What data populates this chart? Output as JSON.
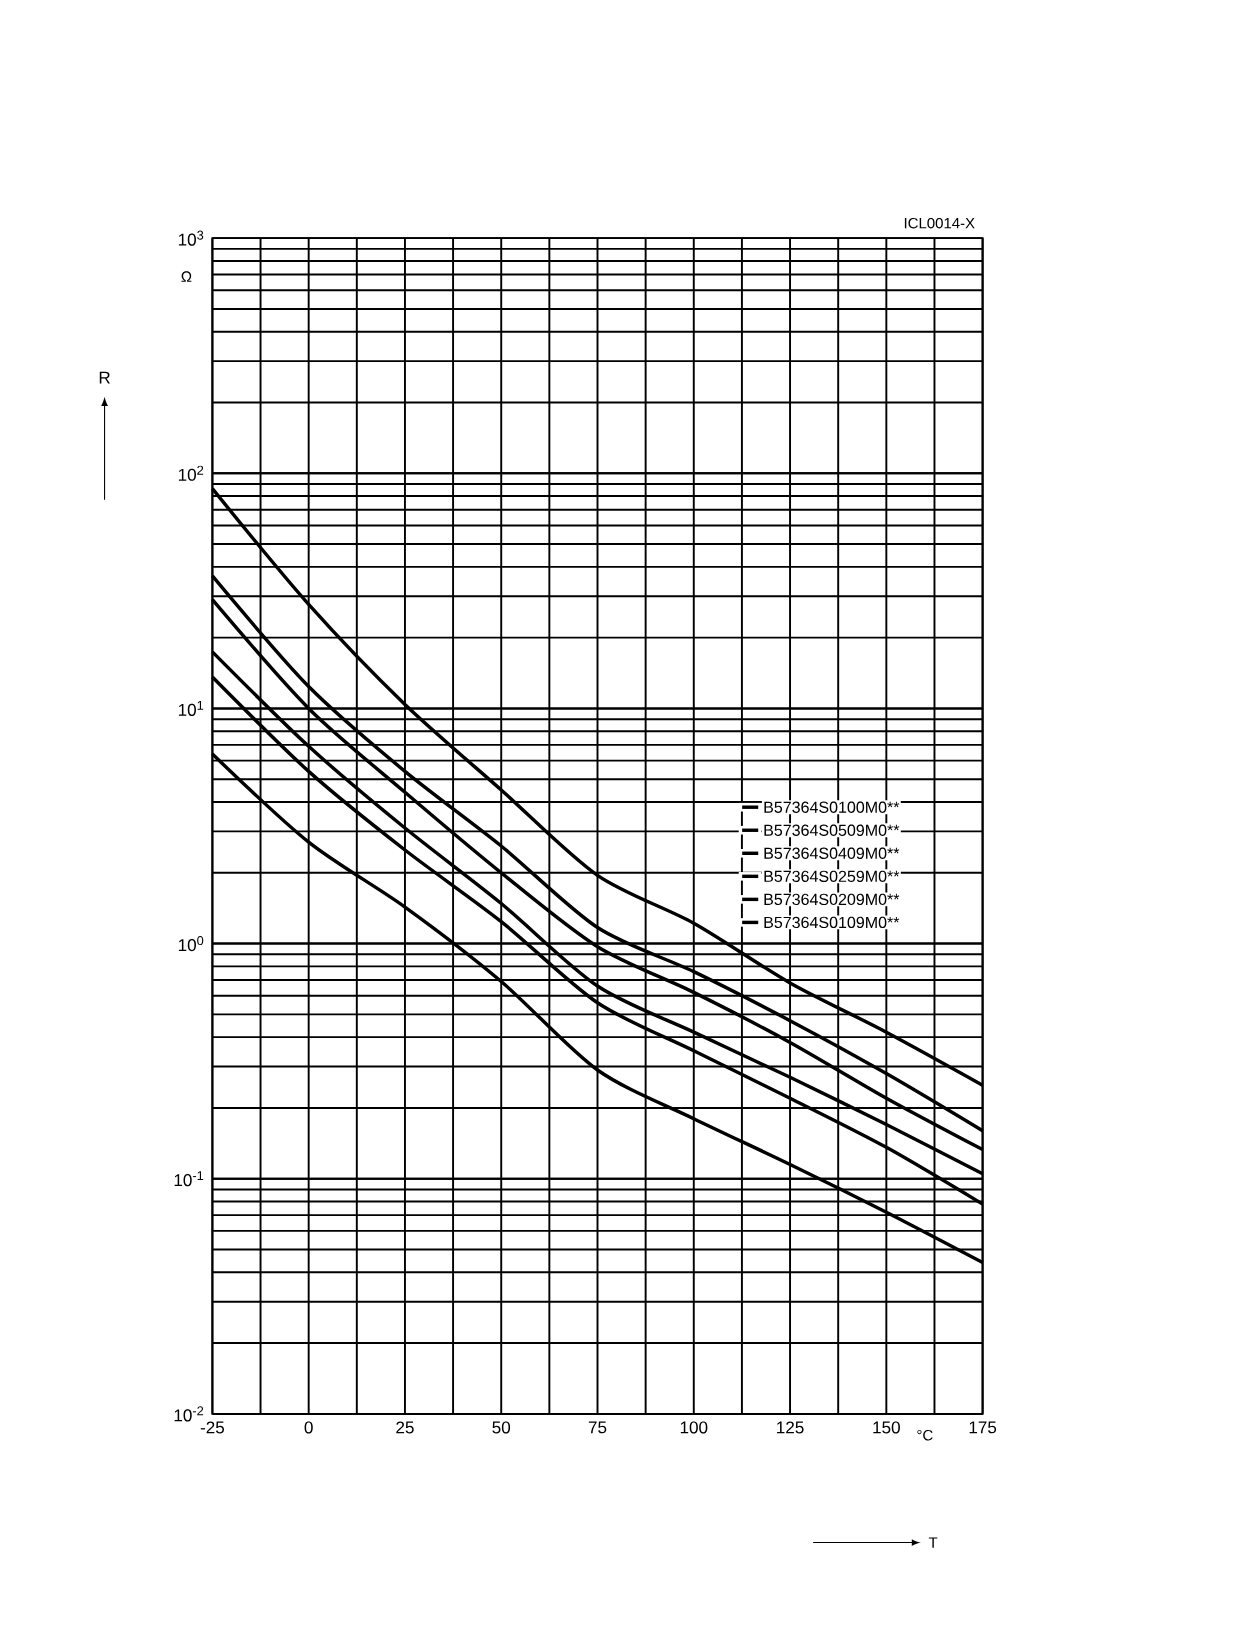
{
  "chart_data": {
    "type": "line",
    "ylabel": "R",
    "x": [
      -25,
      0,
      25,
      50,
      75,
      100,
      125,
      150,
      175
    ],
    "series": [
      {
        "name": "B57364S0100M0**",
        "color": "#000000",
        "values": [
          86,
          27.7,
          10.4,
          4.5,
          1.95,
          1.22,
          0.68,
          0.42,
          0.25
        ]
      },
      {
        "name": "B57364S0509M0**",
        "color": "#000000",
        "values": [
          36.6,
          12.4,
          5.4,
          2.6,
          1.17,
          0.76,
          0.47,
          0.28,
          0.16
        ]
      },
      {
        "name": "B57364S0409M0**",
        "color": "#000000",
        "values": [
          29,
          10,
          4.4,
          2.0,
          0.97,
          0.62,
          0.38,
          0.22,
          0.133
        ]
      },
      {
        "name": "B57364S0259M0**",
        "color": "#000000",
        "values": [
          17.4,
          6.9,
          3.1,
          1.48,
          0.66,
          0.42,
          0.27,
          0.17,
          0.105
        ]
      },
      {
        "name": "B57364S0209M0**",
        "color": "#000000",
        "values": [
          13.6,
          5.4,
          2.5,
          1.24,
          0.56,
          0.35,
          0.22,
          0.136,
          0.078
        ]
      },
      {
        "name": "B57364S0109M0**",
        "color": "#000000",
        "values": [
          6.4,
          2.7,
          1.43,
          0.69,
          0.29,
          0.18,
          0.115,
          0.072,
          0.044
        ]
      }
    ],
    "xlim": [
      -25,
      175
    ],
    "xticks": [
      -25,
      0,
      25,
      50,
      75,
      100,
      125,
      150,
      175
    ],
    "ylim": [
      0.01,
      1000
    ],
    "yticks": [
      {
        "value": 0.01,
        "label": "10$^{-2}$"
      },
      {
        "value": 0.1,
        "label": "10$^{-1}$"
      },
      {
        "value": 1,
        "label": "10$^{0}$"
      },
      {
        "value": 10,
        "label": "10$^{1}$"
      },
      {
        "value": 100,
        "label": "10$^{2}$"
      },
      {
        "value": 1000,
        "label": "10$^{3}$"
      }
    ],
    "log": "y",
    "grid": true,
    "legend": "right",
    "marker": "none",
    "line_style": "solid",
    "annotations": [
      "ICL0014-X",
      "Ω",
      "°C",
      "T"
    ]
  }
}
